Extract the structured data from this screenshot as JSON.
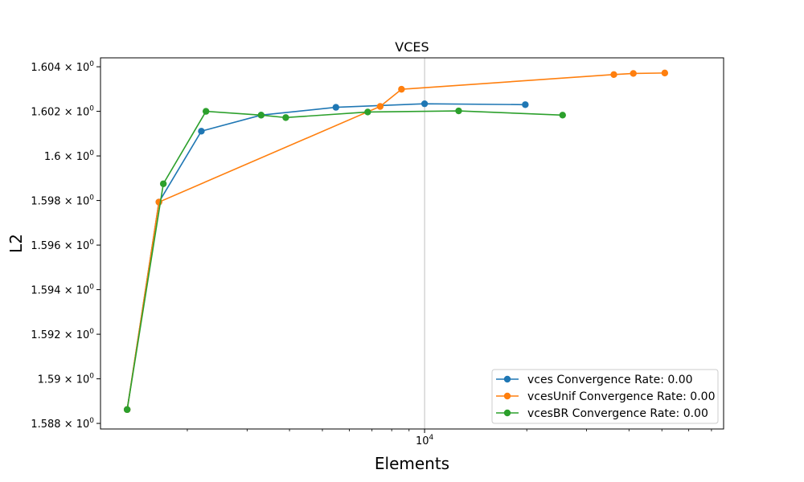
{
  "chart_data": {
    "type": "line",
    "title": "VCES",
    "xlabel": "Elements",
    "ylabel": "L2",
    "xscale": "log",
    "xlim": [
      1110,
      76000
    ],
    "ylim": [
      1.58775,
      1.6044
    ],
    "x_ticks": [
      {
        "value": 10000,
        "base": "10",
        "exp": "4"
      }
    ],
    "y_ticks": [
      {
        "value": 1.588,
        "label": "1.588 × 10",
        "exp": "0"
      },
      {
        "value": 1.59,
        "label": "1.59 × 10",
        "exp": "0"
      },
      {
        "value": 1.592,
        "label": "1.592 × 10",
        "exp": "0"
      },
      {
        "value": 1.594,
        "label": "1.594 × 10",
        "exp": "0"
      },
      {
        "value": 1.596,
        "label": "1.596 × 10",
        "exp": "0"
      },
      {
        "value": 1.598,
        "label": "1.598 × 10",
        "exp": "0"
      },
      {
        "value": 1.6,
        "label": "1.6 × 10",
        "exp": "0"
      },
      {
        "value": 1.602,
        "label": "1.602 × 10",
        "exp": "0"
      },
      {
        "value": 1.604,
        "label": "1.604 × 10",
        "exp": "0"
      }
    ],
    "grid": "x-major",
    "legend_position": "lower-right",
    "series": [
      {
        "name": "vces Convergence Rate: 0.00",
        "color": "#1f77b4",
        "x": [
          1330,
          1650,
          2200,
          3300,
          5480,
          10000,
          19800
        ],
        "y": [
          1.58862,
          1.59793,
          1.60111,
          1.60183,
          1.60218,
          1.60234,
          1.6023
        ]
      },
      {
        "name": "vcesUnif Convergence Rate: 0.00",
        "color": "#ff7f0e",
        "x": [
          1330,
          1650,
          7400,
          8550,
          36100,
          41200,
          51000
        ],
        "y": [
          1.58862,
          1.59793,
          1.60222,
          1.60299,
          1.60365,
          1.6037,
          1.60372
        ]
      },
      {
        "name": "vcesBR Convergence Rate: 0.00",
        "color": "#2ca02c",
        "x": [
          1330,
          1700,
          2270,
          3300,
          3900,
          6800,
          12600,
          25500
        ],
        "y": [
          1.58862,
          1.59875,
          1.602,
          1.60183,
          1.60172,
          1.60197,
          1.60202,
          1.60183
        ]
      }
    ]
  }
}
